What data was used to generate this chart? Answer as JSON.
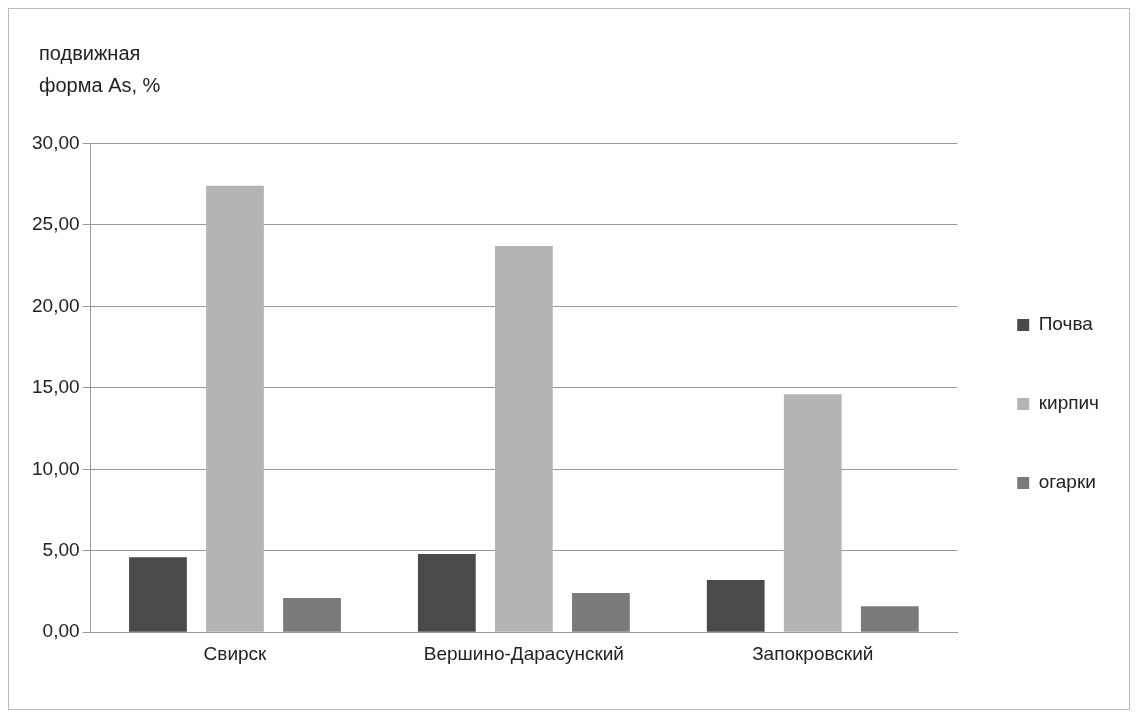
{
  "chart_data": {
    "type": "bar",
    "ylabel": "подвижная\nформа As, %",
    "categories": [
      "Свирск",
      "Вершино-Дарасунский",
      "Запокровский"
    ],
    "series": [
      {
        "name": "Почва",
        "color": "#4a4a4a",
        "values": [
          4.6,
          4.8,
          3.2
        ]
      },
      {
        "name": "кирпич",
        "color": "#b4b4b4",
        "values": [
          27.4,
          23.7,
          14.6
        ]
      },
      {
        "name": "огарки",
        "color": "#7a7a7a",
        "values": [
          2.1,
          2.4,
          1.6
        ]
      }
    ],
    "ylim": [
      0,
      30
    ],
    "yticks": [
      {
        "value": 0,
        "label": "0,00"
      },
      {
        "value": 5,
        "label": "5,00"
      },
      {
        "value": 10,
        "label": "10,00"
      },
      {
        "value": 15,
        "label": "15,00"
      },
      {
        "value": 20,
        "label": "20,00"
      },
      {
        "value": 25,
        "label": "25,00"
      },
      {
        "value": 30,
        "label": "30,00"
      }
    ],
    "grid": "y",
    "legend": "right"
  }
}
